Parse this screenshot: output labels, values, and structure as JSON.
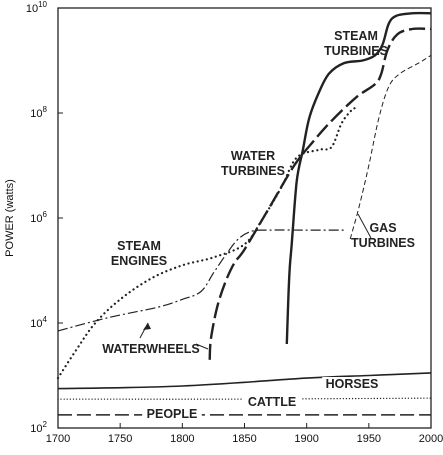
{
  "chart_data": {
    "type": "line",
    "title": "",
    "xlabel": "",
    "ylabel": "POWER (watts)",
    "xlim": [
      1700,
      2000
    ],
    "ylim_log10": [
      2,
      10
    ],
    "y_scale": "log",
    "grid": false,
    "x_ticks": [
      "1700",
      "1750",
      "1800",
      "1850",
      "1900",
      "1950",
      "2000"
    ],
    "y_ticks": [
      {
        "base": "10",
        "exp": "10",
        "log": 10
      },
      {
        "base": "10",
        "exp": "8",
        "log": 8
      },
      {
        "base": "10",
        "exp": "6",
        "log": 6
      },
      {
        "base": "10",
        "exp": "4",
        "log": 4
      },
      {
        "base": "10",
        "exp": "2",
        "log": 2
      }
    ],
    "series": [
      {
        "name": "STEAM TURBINES",
        "style": "solid-thick",
        "points": [
          [
            1884,
            3.6
          ],
          [
            1886,
            4.9
          ],
          [
            1888,
            5.5
          ],
          [
            1892,
            6.7
          ],
          [
            1897,
            7.3
          ],
          [
            1902,
            7.9
          ],
          [
            1910,
            8.4
          ],
          [
            1918,
            8.75
          ],
          [
            1930,
            8.95
          ],
          [
            1945,
            9.0
          ],
          [
            1955,
            9.1
          ],
          [
            1961,
            9.3
          ],
          [
            1966,
            9.7
          ],
          [
            1972,
            9.85
          ],
          [
            1985,
            9.9
          ],
          [
            2000,
            9.9
          ]
        ],
        "label_lines": [
          "STEAM",
          "TURBINES"
        ]
      },
      {
        "name": "WATER TURBINES",
        "style": "long-dash",
        "points": [
          [
            1822,
            3.3
          ],
          [
            1823,
            3.7
          ],
          [
            1828,
            4.3
          ],
          [
            1835,
            4.8
          ],
          [
            1842,
            5.15
          ],
          [
            1850,
            5.4
          ],
          [
            1870,
            6.2
          ],
          [
            1890,
            7.0
          ],
          [
            1905,
            7.45
          ],
          [
            1920,
            7.85
          ],
          [
            1940,
            8.3
          ],
          [
            1955,
            8.55
          ],
          [
            1960,
            8.75
          ],
          [
            1965,
            9.2
          ],
          [
            1973,
            9.5
          ],
          [
            1985,
            9.6
          ],
          [
            2000,
            9.6
          ]
        ],
        "label_lines": [
          "WATER",
          "TURBINES"
        ]
      },
      {
        "name": "GAS TURBINES",
        "style": "short-dash",
        "points": [
          [
            1935,
            5.6
          ],
          [
            1942,
            6.2
          ],
          [
            1950,
            7.0
          ],
          [
            1958,
            7.9
          ],
          [
            1966,
            8.5
          ],
          [
            1975,
            8.75
          ],
          [
            1990,
            8.95
          ],
          [
            2000,
            9.1
          ]
        ],
        "label_lines": [
          "GAS",
          "TURBINES"
        ]
      },
      {
        "name": "STEAM ENGINES",
        "style": "dotted",
        "points": [
          [
            1700,
            2.95
          ],
          [
            1715,
            3.5
          ],
          [
            1730,
            4.0
          ],
          [
            1750,
            4.45
          ],
          [
            1775,
            4.85
          ],
          [
            1800,
            5.1
          ],
          [
            1825,
            5.25
          ],
          [
            1850,
            5.5
          ],
          [
            1865,
            6.0
          ],
          [
            1880,
            6.6
          ],
          [
            1892,
            7.15
          ],
          [
            1910,
            7.3
          ],
          [
            1920,
            7.35
          ],
          [
            1928,
            7.8
          ],
          [
            1936,
            8.05
          ],
          [
            1940,
            8.1
          ]
        ],
        "label_lines": [
          "STEAM",
          "ENGINES"
        ]
      },
      {
        "name": "WATERWHEELS",
        "style": "dash-dot",
        "points": [
          [
            1700,
            3.85
          ],
          [
            1740,
            4.1
          ],
          [
            1780,
            4.3
          ],
          [
            1800,
            4.45
          ],
          [
            1815,
            4.6
          ],
          [
            1825,
            4.95
          ],
          [
            1835,
            5.3
          ],
          [
            1845,
            5.6
          ],
          [
            1856,
            5.75
          ],
          [
            1870,
            5.77
          ],
          [
            1900,
            5.77
          ],
          [
            1930,
            5.77
          ]
        ],
        "label_lines": [
          "WATERWHEELS"
        ]
      },
      {
        "name": "HORSES",
        "style": "solid",
        "points": [
          [
            1700,
            2.75
          ],
          [
            1800,
            2.8
          ],
          [
            1900,
            2.95
          ],
          [
            1950,
            3.0
          ],
          [
            2000,
            3.05
          ]
        ],
        "label_lines": [
          "HORSES"
        ]
      },
      {
        "name": "CATTLE",
        "style": "fine-dotted",
        "points": [
          [
            1700,
            2.55
          ],
          [
            1850,
            2.55
          ],
          [
            2000,
            2.57
          ]
        ],
        "label_lines": [
          "CATTLE"
        ]
      },
      {
        "name": "PEOPLE",
        "style": "long-dash-thin",
        "points": [
          [
            1700,
            2.25
          ],
          [
            2000,
            2.25
          ]
        ],
        "label_lines": [
          "PEOPLE"
        ]
      }
    ]
  }
}
